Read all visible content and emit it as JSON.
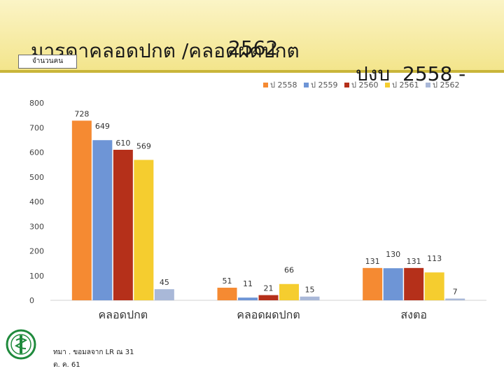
{
  "title": {
    "line1_left": "มารดาคลอดปกต /คลอดผดปกต",
    "line1_right": "ปงบ  2558 -",
    "line2": "2562"
  },
  "unit_label": "จำนวนคน",
  "footer": {
    "source_line1": "ทมา   . ขอมลจาก     LR ณ 31",
    "source_line2": "ต. ค. 61"
  },
  "colors": {
    "banner": "#f3e58c",
    "series": [
      "#f58a32",
      "#6e95d6",
      "#b5301a",
      "#f5cd2f",
      "#a9b8d8"
    ]
  },
  "chart_data": {
    "type": "bar",
    "title": "มารดาคลอดปกต /คลอดผดปกต ปงบ 2558 - 2562",
    "ylabel": "จำนวนคน",
    "ylim": [
      0,
      800
    ],
    "yticks": [
      0,
      100,
      200,
      300,
      400,
      500,
      600,
      700,
      800
    ],
    "grid": false,
    "legend": "top-right",
    "categories": [
      "คลอดปกต",
      "คลอดผดปกต",
      "สงตอ"
    ],
    "series": [
      {
        "name": "ป  2558",
        "color": "#f58a32",
        "values": [
          728,
          51,
          131
        ]
      },
      {
        "name": "ป  2559",
        "color": "#6e95d6",
        "values": [
          649,
          11,
          130
        ]
      },
      {
        "name": "ป  2560",
        "color": "#b5301a",
        "values": [
          610,
          21,
          131
        ]
      },
      {
        "name": "ป  2561",
        "color": "#f5cd2f",
        "values": [
          569,
          66,
          113
        ]
      },
      {
        "name": "ป  2562",
        "color": "#a9b8d8",
        "values": [
          45,
          15,
          7
        ]
      }
    ]
  }
}
